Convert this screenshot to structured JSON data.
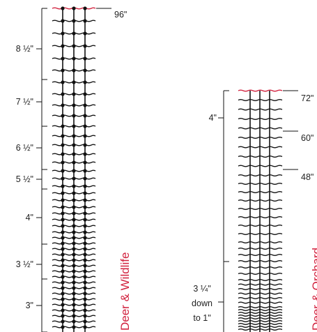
{
  "colors": {
    "ink": "#111111",
    "accent": "#d1213d",
    "dim": "#333333"
  },
  "left_fence": {
    "product_name": "Deer & Wildlife",
    "height_label": "96\"",
    "spacing_labels": [
      "8 ½\"",
      "7 ½\"",
      "6 ½\"",
      "5 ½\"",
      "4\"",
      "3 ½\"",
      "3\""
    ]
  },
  "right_fence": {
    "product_name": "Deer & Orchard",
    "height_labels": [
      "72\"",
      "60\"",
      "48\""
    ],
    "spacing_labels": [
      "4\""
    ],
    "spacing_note": [
      "3 ¼\"",
      "down",
      "to 1\""
    ]
  }
}
